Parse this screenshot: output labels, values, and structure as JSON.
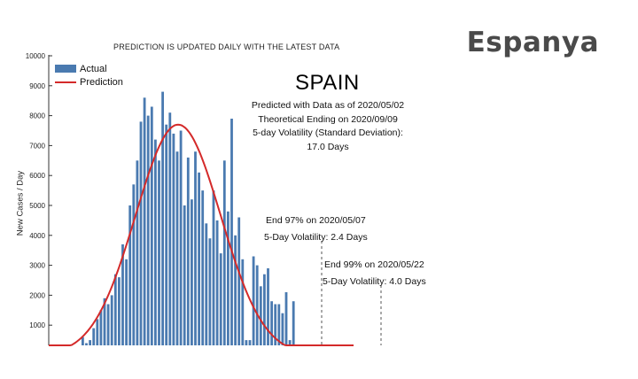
{
  "brand": {
    "title": "Espanya"
  },
  "chart_data": {
    "type": "bar",
    "title": "SPAIN",
    "subtitle": "PREDICTION IS UPDATED DAILY WITH THE LATEST DATA",
    "xlabel": "",
    "ylabel": "New Cases / Day",
    "ylim": [
      0,
      10000
    ],
    "yticks": [
      "1000",
      "2000",
      "3000",
      "4000",
      "5000",
      "6000",
      "7000",
      "8000",
      "9000",
      "10000"
    ],
    "grid": false,
    "legend_position": "top-left",
    "legend": [
      "Actual",
      "Prediction"
    ],
    "colors": {
      "actual": "#4a7ab0",
      "prediction": "#d42a2a",
      "dashed": "#555555"
    },
    "series": [
      {
        "name": "Actual",
        "values": [
          600,
          400,
          500,
          900,
          1200,
          1500,
          1900,
          1700,
          2000,
          2700,
          2600,
          3700,
          3200,
          5000,
          5700,
          6500,
          7800,
          8600,
          8000,
          8300,
          7200,
          6500,
          8800,
          7700,
          8100,
          7400,
          6800,
          7500,
          5000,
          6600,
          5200,
          6800,
          6100,
          5500,
          4400,
          3900,
          5500,
          4500,
          3400,
          6500,
          4800,
          7900,
          4000,
          4600,
          3200,
          500,
          500,
          3300,
          3000,
          2300,
          2700,
          2900,
          1800,
          1700,
          1700,
          1400,
          2100,
          500,
          1800
        ]
      },
      {
        "name": "Prediction",
        "peak": 7700,
        "theoretical_ending": "2020/09/09"
      }
    ],
    "annotations": {
      "info_lines": [
        "Predicted with Data as of 2020/05/02",
        "Theoretical Ending on 2020/09/09",
        "5-day Volatility (Standard Deviation):",
        "17.0 Days"
      ],
      "end97": {
        "label": "End 97% on 2020/05/07",
        "volatility": "5-Day Volatility: 2.4 Days"
      },
      "end99": {
        "label": "End 99% on 2020/05/22",
        "volatility": "5-Day Volatility: 4.0 Days"
      }
    }
  }
}
